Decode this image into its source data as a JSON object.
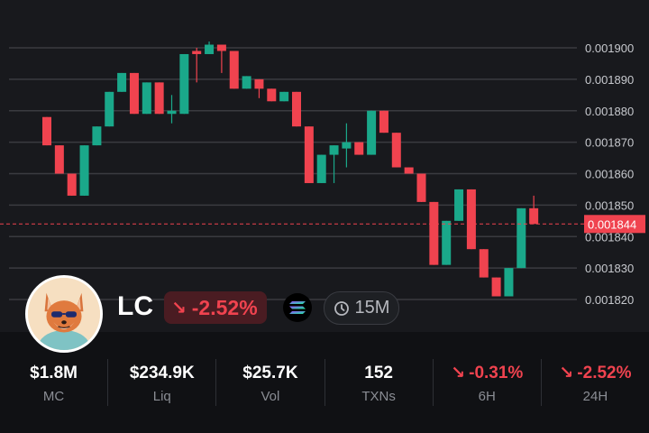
{
  "chart_data": {
    "type": "candlestick",
    "y_ticks": [
      "0.001900",
      "0.001890",
      "0.001880",
      "0.001870",
      "0.001860",
      "0.001850",
      "0.001840",
      "0.001830",
      "0.001820"
    ],
    "ylim": [
      0.001815,
      0.001905
    ],
    "current_price": 0.001844,
    "current_price_label": "0.001844",
    "candles": [
      {
        "o": 0.001878,
        "h": 0.001878,
        "l": 0.001869,
        "c": 0.001869
      },
      {
        "o": 0.001869,
        "h": 0.001869,
        "l": 0.00186,
        "c": 0.00186
      },
      {
        "o": 0.00186,
        "h": 0.00186,
        "l": 0.001853,
        "c": 0.001853
      },
      {
        "o": 0.001853,
        "h": 0.001869,
        "l": 0.001853,
        "c": 0.001869
      },
      {
        "o": 0.001869,
        "h": 0.001875,
        "l": 0.001869,
        "c": 0.001875
      },
      {
        "o": 0.001875,
        "h": 0.001886,
        "l": 0.001875,
        "c": 0.001886
      },
      {
        "o": 0.001886,
        "h": 0.001892,
        "l": 0.001886,
        "c": 0.001892
      },
      {
        "o": 0.001892,
        "h": 0.001892,
        "l": 0.001879,
        "c": 0.001879
      },
      {
        "o": 0.001879,
        "h": 0.001889,
        "l": 0.001879,
        "c": 0.001889
      },
      {
        "o": 0.001889,
        "h": 0.001889,
        "l": 0.001879,
        "c": 0.001879
      },
      {
        "o": 0.001879,
        "h": 0.001885,
        "l": 0.001876,
        "c": 0.00188
      },
      {
        "o": 0.001879,
        "h": 0.001898,
        "l": 0.001879,
        "c": 0.001898
      },
      {
        "o": 0.001899,
        "h": 0.0019,
        "l": 0.001889,
        "c": 0.001898
      },
      {
        "o": 0.001898,
        "h": 0.001902,
        "l": 0.001898,
        "c": 0.001901
      },
      {
        "o": 0.001901,
        "h": 0.001901,
        "l": 0.001892,
        "c": 0.001899
      },
      {
        "o": 0.001899,
        "h": 0.001899,
        "l": 0.001887,
        "c": 0.001887
      },
      {
        "o": 0.001887,
        "h": 0.001891,
        "l": 0.001887,
        "c": 0.001891
      },
      {
        "o": 0.00189,
        "h": 0.00189,
        "l": 0.001884,
        "c": 0.001887
      },
      {
        "o": 0.001887,
        "h": 0.001887,
        "l": 0.001883,
        "c": 0.001883
      },
      {
        "o": 0.001883,
        "h": 0.001886,
        "l": 0.001883,
        "c": 0.001886
      },
      {
        "o": 0.001886,
        "h": 0.001886,
        "l": 0.001875,
        "c": 0.001875
      },
      {
        "o": 0.001875,
        "h": 0.001875,
        "l": 0.001857,
        "c": 0.001857
      },
      {
        "o": 0.001857,
        "h": 0.001866,
        "l": 0.001857,
        "c": 0.001866
      },
      {
        "o": 0.001866,
        "h": 0.001869,
        "l": 0.001857,
        "c": 0.001869
      },
      {
        "o": 0.001868,
        "h": 0.001876,
        "l": 0.001862,
        "c": 0.00187
      },
      {
        "o": 0.00187,
        "h": 0.00187,
        "l": 0.001866,
        "c": 0.001866
      },
      {
        "o": 0.001866,
        "h": 0.00188,
        "l": 0.001866,
        "c": 0.00188
      },
      {
        "o": 0.00188,
        "h": 0.00188,
        "l": 0.001873,
        "c": 0.001873
      },
      {
        "o": 0.001873,
        "h": 0.001873,
        "l": 0.001862,
        "c": 0.001862
      },
      {
        "o": 0.001862,
        "h": 0.001862,
        "l": 0.00186,
        "c": 0.00186
      },
      {
        "o": 0.00186,
        "h": 0.00186,
        "l": 0.001851,
        "c": 0.001851
      },
      {
        "o": 0.001851,
        "h": 0.001851,
        "l": 0.001831,
        "c": 0.001831
      },
      {
        "o": 0.001831,
        "h": 0.001845,
        "l": 0.001831,
        "c": 0.001845
      },
      {
        "o": 0.001845,
        "h": 0.001855,
        "l": 0.001845,
        "c": 0.001855
      },
      {
        "o": 0.001855,
        "h": 0.001855,
        "l": 0.001836,
        "c": 0.001836
      },
      {
        "o": 0.001836,
        "h": 0.001836,
        "l": 0.001827,
        "c": 0.001827
      },
      {
        "o": 0.001827,
        "h": 0.001827,
        "l": 0.001821,
        "c": 0.001821
      },
      {
        "o": 0.001821,
        "h": 0.00183,
        "l": 0.001821,
        "c": 0.00183
      },
      {
        "o": 0.00183,
        "h": 0.001849,
        "l": 0.00183,
        "c": 0.001849
      },
      {
        "o": 0.001849,
        "h": 0.001853,
        "l": 0.001844,
        "c": 0.001844
      }
    ]
  },
  "token": {
    "name": "LC",
    "change": "-2.52%",
    "interval": "15M"
  },
  "stats": [
    {
      "value": "$1.8M",
      "label": "MC",
      "negative": false
    },
    {
      "value": "$234.9K",
      "label": "Liq",
      "negative": false
    },
    {
      "value": "$25.7K",
      "label": "Vol",
      "negative": false
    },
    {
      "value": "152",
      "label": "TXNs",
      "negative": false
    },
    {
      "value": "-0.31%",
      "label": "6H",
      "negative": true
    },
    {
      "value": "-2.52%",
      "label": "24H",
      "negative": true
    }
  ],
  "colors": {
    "up": "#1aa88a",
    "down": "#f0434f",
    "grid": "#3a3b40",
    "axis_text": "#c7c9ce"
  }
}
